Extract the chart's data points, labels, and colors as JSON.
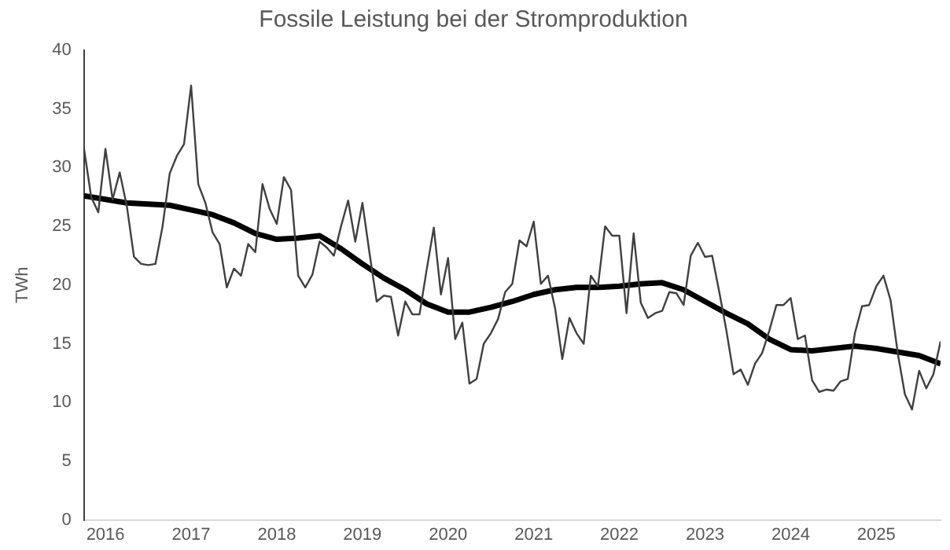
{
  "chart_data": {
    "type": "line",
    "title": "Fossile Leistung bei der Stromproduktion",
    "ylabel": "TWh",
    "x": [
      "2015-10",
      "2015-11",
      "2015-12",
      "2016-01",
      "2016-02",
      "2016-03",
      "2016-04",
      "2016-05",
      "2016-06",
      "2016-07",
      "2016-08",
      "2016-09",
      "2016-10",
      "2016-11",
      "2016-12",
      "2017-01",
      "2017-02",
      "2017-03",
      "2017-04",
      "2017-05",
      "2017-06",
      "2017-07",
      "2017-08",
      "2017-09",
      "2017-10",
      "2017-11",
      "2017-12",
      "2018-01",
      "2018-02",
      "2018-03",
      "2018-04",
      "2018-05",
      "2018-06",
      "2018-07",
      "2018-08",
      "2018-09",
      "2018-10",
      "2018-11",
      "2018-12",
      "2019-01",
      "2019-02",
      "2019-03",
      "2019-04",
      "2019-05",
      "2019-06",
      "2019-07",
      "2019-08",
      "2019-09",
      "2019-10",
      "2019-11",
      "2019-12",
      "2020-01",
      "2020-02",
      "2020-03",
      "2020-04",
      "2020-05",
      "2020-06",
      "2020-07",
      "2020-08",
      "2020-09",
      "2020-10",
      "2020-11",
      "2020-12",
      "2021-01",
      "2021-02",
      "2021-03",
      "2021-04",
      "2021-05",
      "2021-06",
      "2021-07",
      "2021-08",
      "2021-09",
      "2021-10",
      "2021-11",
      "2021-12",
      "2022-01",
      "2022-02",
      "2022-03",
      "2022-04",
      "2022-05",
      "2022-06",
      "2022-07",
      "2022-08",
      "2022-09",
      "2022-10",
      "2022-11",
      "2022-12",
      "2023-01",
      "2023-02",
      "2023-03",
      "2023-04",
      "2023-05",
      "2023-06",
      "2023-07",
      "2023-08",
      "2023-09",
      "2023-10",
      "2023-11",
      "2023-12",
      "2024-01",
      "2024-02",
      "2024-03",
      "2024-04",
      "2024-05",
      "2024-06",
      "2024-07",
      "2024-08",
      "2024-09",
      "2024-10",
      "2024-11",
      "2024-12",
      "2025-01",
      "2025-02",
      "2025-03",
      "2025-04",
      "2025-05",
      "2025-06",
      "2025-07",
      "2025-08",
      "2025-09",
      "2025-10"
    ],
    "series": [
      {
        "color": "#404040",
        "values": [
          31.6,
          27.5,
          26.2,
          31.6,
          27.3,
          29.6,
          26.7,
          22.4,
          21.8,
          21.7,
          21.8,
          25.0,
          29.5,
          31.0,
          32.0,
          37.0,
          28.6,
          27.0,
          24.5,
          23.5,
          19.8,
          21.4,
          20.8,
          23.5,
          22.8,
          28.6,
          26.5,
          25.2,
          29.2,
          28.1,
          20.8,
          19.8,
          20.9,
          23.7,
          23.2,
          22.5,
          25.0,
          27.2,
          23.7,
          27.0,
          22.7,
          18.6,
          19.1,
          19.0,
          15.7,
          18.6,
          17.5,
          17.5,
          21.3,
          24.9,
          19.2,
          22.3,
          15.4,
          16.8,
          11.6,
          12.0,
          15.0,
          15.9,
          17.1,
          19.4,
          20.1,
          23.8,
          23.3,
          25.4,
          20.1,
          20.8,
          18.0,
          13.7,
          17.2,
          15.9,
          15.0,
          20.8,
          19.9,
          25.0,
          24.2,
          24.2,
          17.6,
          24.4,
          18.5,
          17.2,
          17.6,
          17.8,
          19.4,
          19.3,
          18.3,
          22.5,
          23.6,
          22.4,
          22.5,
          19.4,
          16.1,
          12.4,
          12.8,
          11.5,
          13.3,
          14.2,
          16.1,
          18.3,
          18.3,
          18.9,
          15.4,
          15.7,
          11.9,
          10.9,
          11.1,
          11.0,
          11.8,
          12.0,
          15.9,
          18.2,
          18.3,
          19.9,
          20.8,
          18.7,
          14.2,
          10.7,
          9.4,
          12.7,
          11.2,
          12.4,
          15.2
        ]
      },
      {
        "color": "#000000",
        "x": [
          "2015-10",
          "2016-04",
          "2016-10",
          "2017-01",
          "2017-04",
          "2017-07",
          "2017-10",
          "2018-01",
          "2018-04",
          "2018-07",
          "2018-10",
          "2019-01",
          "2019-04",
          "2019-07",
          "2019-10",
          "2020-01",
          "2020-04",
          "2020-07",
          "2020-10",
          "2021-01",
          "2021-04",
          "2021-07",
          "2021-10",
          "2022-01",
          "2022-04",
          "2022-07",
          "2022-10",
          "2023-01",
          "2023-04",
          "2023-07",
          "2023-10",
          "2024-01",
          "2024-04",
          "2024-07",
          "2024-10",
          "2025-01",
          "2025-04",
          "2025-07",
          "2025-10"
        ],
        "values": [
          27.6,
          27.0,
          26.8,
          26.4,
          26.0,
          25.3,
          24.4,
          23.9,
          24.0,
          24.2,
          23.1,
          21.8,
          20.6,
          19.6,
          18.4,
          17.7,
          17.7,
          18.1,
          18.6,
          19.2,
          19.6,
          19.8,
          19.8,
          19.9,
          20.1,
          20.2,
          19.6,
          18.6,
          17.6,
          16.7,
          15.4,
          14.5,
          14.4,
          14.6,
          14.8,
          14.6,
          14.3,
          14.0,
          13.3
        ]
      }
    ],
    "xlim": [
      "2015-10",
      "2025-10"
    ],
    "xticks": [
      "2016",
      "2017",
      "2018",
      "2019",
      "2020",
      "2021",
      "2022",
      "2023",
      "2024",
      "2025"
    ],
    "ylim": [
      0,
      40
    ],
    "yticks": [
      0,
      5,
      10,
      15,
      20,
      25,
      30,
      35,
      40
    ],
    "grid": false,
    "legend": false,
    "marker": "none",
    "line_style": "solid"
  }
}
